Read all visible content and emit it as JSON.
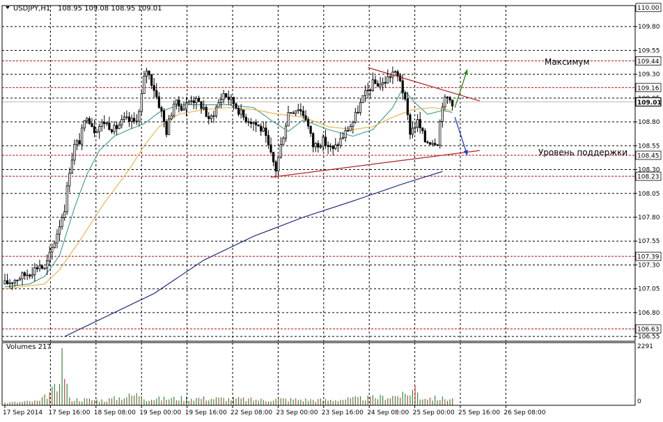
{
  "header": {
    "symbol_text": "USDJPY,H1",
    "ohlc_text": "108.95 109.08 108.95 109.01"
  },
  "volume_panel": {
    "label": "Volumes 217",
    "axis_top": "2291",
    "axis_bottom": "0"
  },
  "annotations": {
    "max_label": "Максимум",
    "support_label": "Уровень поддержки"
  },
  "colors": {
    "background": "#ffffff",
    "candle": "#000000",
    "volume": "#2e8b3a",
    "volume_spike": "#d83838",
    "ma_short": "#3a9a8a",
    "ma_medium": "#e6b040",
    "ma_long": "#101a7a",
    "trendline": "#b02020",
    "level_line": "#c00000",
    "arrow_up": "#1a8a1a",
    "arrow_down": "#1040c8",
    "grid": "#000000"
  },
  "chart_data": {
    "type": "candlestick",
    "symbol": "USDJPY",
    "timeframe": "H1",
    "ylim": [
      106.5,
      110.02
    ],
    "y_ticks": [
      106.55,
      106.8,
      107.05,
      107.3,
      107.55,
      107.8,
      108.05,
      108.3,
      108.55,
      108.8,
      109.05,
      109.3,
      109.55,
      109.8
    ],
    "x_tick_labels": [
      "17 Sep 2014",
      "17 Sep 16:00",
      "18 Sep 08:00",
      "19 Sep 00:00",
      "19 Sep 16:00",
      "22 Sep 08:00",
      "23 Sep 00:00",
      "23 Sep 16:00",
      "24 Sep 08:00",
      "25 Sep 00:00",
      "25 Sep 16:00",
      "26 Sep 08:00"
    ],
    "highlighted_levels": [
      {
        "value": 110.0,
        "label": "110.00",
        "style": "box"
      },
      {
        "value": 109.44,
        "label": "109.44",
        "style": "level"
      },
      {
        "value": 109.16,
        "label": "109.16",
        "style": "level"
      },
      {
        "value": 109.01,
        "label": "109.01",
        "style": "current"
      },
      {
        "value": 108.45,
        "label": "108.45",
        "style": "level"
      },
      {
        "value": 108.23,
        "label": "108.23",
        "style": "level"
      },
      {
        "value": 107.39,
        "label": "107.39",
        "style": "level"
      },
      {
        "value": 106.63,
        "label": "106.63",
        "style": "level"
      }
    ],
    "price_keypoints": [
      [
        0,
        107.1
      ],
      [
        10,
        107.22
      ],
      [
        14,
        107.3
      ],
      [
        16,
        107.25
      ],
      [
        20,
        107.55
      ],
      [
        24,
        107.9
      ],
      [
        26,
        108.3
      ],
      [
        28,
        108.55
      ],
      [
        30,
        108.6
      ],
      [
        33,
        108.88
      ],
      [
        36,
        108.72
      ],
      [
        40,
        108.8
      ],
      [
        44,
        108.72
      ],
      [
        48,
        108.82
      ],
      [
        52,
        108.8
      ],
      [
        54,
        108.9
      ],
      [
        56,
        109.25
      ],
      [
        57,
        109.35
      ],
      [
        60,
        109.15
      ],
      [
        63,
        108.9
      ],
      [
        65,
        108.7
      ],
      [
        68,
        109.0
      ],
      [
        72,
        108.95
      ],
      [
        75,
        109.05
      ],
      [
        80,
        108.95
      ],
      [
        82,
        108.8
      ],
      [
        85,
        108.95
      ],
      [
        88,
        109.1
      ],
      [
        92,
        109.0
      ],
      [
        96,
        108.85
      ],
      [
        100,
        108.8
      ],
      [
        104,
        108.7
      ],
      [
        107,
        108.45
      ],
      [
        109,
        108.3
      ],
      [
        111,
        108.55
      ],
      [
        114,
        108.9
      ],
      [
        118,
        108.95
      ],
      [
        121,
        108.85
      ],
      [
        124,
        108.55
      ],
      [
        128,
        108.6
      ],
      [
        132,
        108.5
      ],
      [
        136,
        108.65
      ],
      [
        140,
        108.8
      ],
      [
        144,
        109.05
      ],
      [
        148,
        109.2
      ],
      [
        152,
        109.2
      ],
      [
        156,
        109.32
      ],
      [
        159,
        109.25
      ],
      [
        161,
        109.0
      ],
      [
        163,
        108.7
      ],
      [
        166,
        108.8
      ],
      [
        169,
        108.6
      ],
      [
        172,
        108.6
      ],
      [
        174,
        108.6
      ],
      [
        176,
        109.0
      ],
      [
        178,
        109.05
      ],
      [
        180,
        109.01
      ]
    ],
    "volume_keypoints": [
      [
        0,
        0.05
      ],
      [
        14,
        0.08
      ],
      [
        21,
        0.35
      ],
      [
        23,
        1.0
      ],
      [
        24,
        0.65
      ],
      [
        26,
        0.12
      ],
      [
        40,
        0.1
      ],
      [
        55,
        0.22
      ],
      [
        57,
        0.12
      ],
      [
        75,
        0.14
      ],
      [
        95,
        0.12
      ],
      [
        105,
        0.1
      ],
      [
        110,
        0.12
      ],
      [
        130,
        0.1
      ],
      [
        150,
        0.15
      ],
      [
        162,
        0.2
      ],
      [
        165,
        0.35
      ],
      [
        167,
        0.15
      ],
      [
        180,
        0.12
      ]
    ],
    "series": [
      {
        "name": "",
        "kind": "moving_average",
        "points": [
          [
            0,
            107.07
          ],
          [
            10,
            107.1
          ],
          [
            16,
            107.18
          ],
          [
            22,
            107.4
          ],
          [
            28,
            107.9
          ],
          [
            33,
            108.25
          ],
          [
            38,
            108.5
          ],
          [
            44,
            108.65
          ],
          [
            50,
            108.72
          ],
          [
            56,
            108.78
          ],
          [
            62,
            108.9
          ],
          [
            70,
            108.98
          ],
          [
            80,
            108.98
          ],
          [
            90,
            108.98
          ],
          [
            100,
            108.95
          ],
          [
            108,
            108.8
          ],
          [
            114,
            108.7
          ],
          [
            120,
            108.82
          ],
          [
            130,
            108.72
          ],
          [
            140,
            108.65
          ],
          [
            148,
            108.72
          ],
          [
            156,
            108.95
          ],
          [
            160,
            109.15
          ],
          [
            165,
            109.0
          ],
          [
            170,
            108.88
          ],
          [
            176,
            108.92
          ],
          [
            180,
            108.9
          ]
        ]
      },
      {
        "name": "",
        "kind": "moving_average",
        "points": [
          [
            0,
            107.05
          ],
          [
            16,
            107.1
          ],
          [
            22,
            107.25
          ],
          [
            30,
            107.55
          ],
          [
            40,
            107.95
          ],
          [
            50,
            108.3
          ],
          [
            56,
            108.55
          ],
          [
            62,
            108.75
          ],
          [
            70,
            108.88
          ],
          [
            80,
            108.93
          ],
          [
            90,
            108.95
          ],
          [
            100,
            108.93
          ],
          [
            110,
            108.88
          ],
          [
            120,
            108.85
          ],
          [
            130,
            108.75
          ],
          [
            140,
            108.72
          ],
          [
            148,
            108.75
          ],
          [
            156,
            108.85
          ],
          [
            164,
            108.93
          ],
          [
            172,
            108.95
          ],
          [
            180,
            108.92
          ]
        ]
      },
      {
        "name": "",
        "kind": "moving_average",
        "points": [
          [
            24,
            106.55
          ],
          [
            40,
            106.75
          ],
          [
            60,
            107.0
          ],
          [
            80,
            107.35
          ],
          [
            100,
            107.6
          ],
          [
            120,
            107.8
          ],
          [
            140,
            107.97
          ],
          [
            160,
            108.15
          ],
          [
            176,
            108.28
          ]
        ]
      }
    ],
    "trendlines": [
      {
        "from": [
          146,
          109.37
        ],
        "to": [
          191,
          109.02
        ],
        "role": "resistance"
      },
      {
        "from": [
          107,
          108.22
        ],
        "to": [
          191,
          108.5
        ],
        "role": "support"
      }
    ],
    "arrows": [
      {
        "from": [
          181,
          108.95
        ],
        "to": [
          186,
          109.35
        ],
        "direction": "up"
      },
      {
        "from": [
          181,
          108.85
        ],
        "to": [
          186,
          108.45
        ],
        "direction": "down"
      }
    ]
  }
}
